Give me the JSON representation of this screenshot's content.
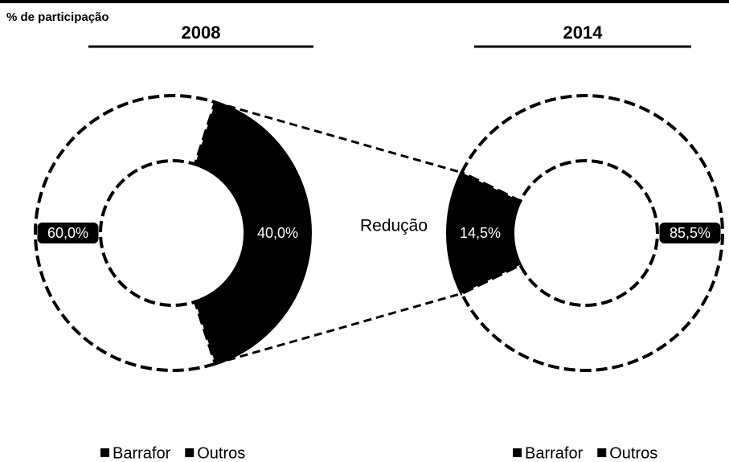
{
  "header": {
    "label": "% de participação"
  },
  "annotation": "Redução",
  "chart_data": [
    {
      "type": "donut",
      "title": "2008",
      "categories": [
        "Barrafor",
        "Outros"
      ],
      "values": [
        40,
        60
      ],
      "value_labels": [
        "40,0%",
        "60,0%"
      ],
      "colors": [
        "#000000",
        "#ffffff"
      ],
      "legend": "bottom"
    },
    {
      "type": "donut",
      "title": "2014",
      "categories": [
        "Barrafor",
        "Outros"
      ],
      "values": [
        14.5,
        85.5
      ],
      "value_labels": [
        "14,5%",
        "85,5%"
      ],
      "colors": [
        "#000000",
        "#ffffff"
      ],
      "legend": "bottom"
    }
  ]
}
